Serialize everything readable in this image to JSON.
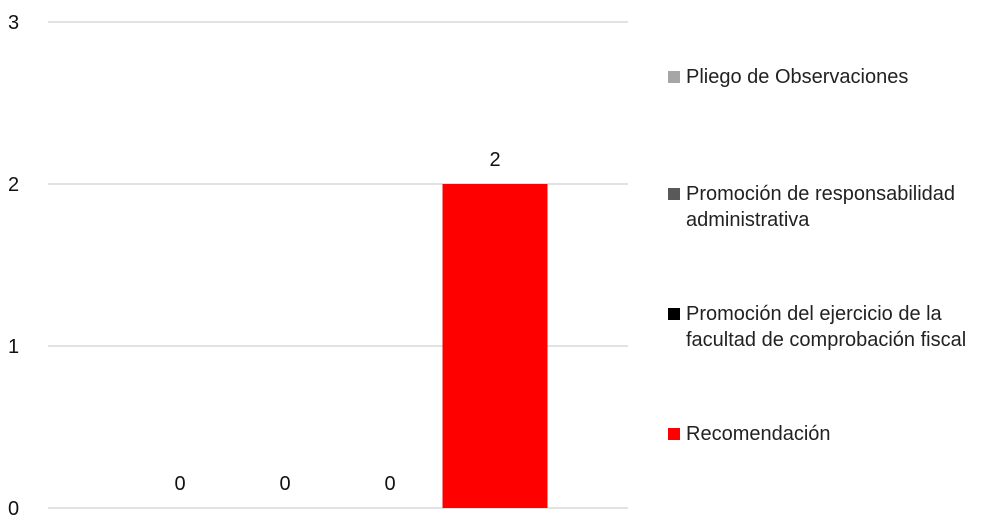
{
  "chart_data": {
    "type": "bar",
    "title": "",
    "xlabel": "",
    "ylabel": "",
    "ylim": [
      0,
      3
    ],
    "yticks": [
      0,
      1,
      2,
      3
    ],
    "grid": true,
    "legend_position": "right",
    "series": [
      {
        "name": "Pliego de Observaciones",
        "value": 0,
        "color": "#a6a6a6"
      },
      {
        "name": "Promoción de responsabilidad administrativa",
        "value": 0,
        "color": "#595959"
      },
      {
        "name": "Promoción del ejercicio de la facultad de comprobación fiscal",
        "value": 0,
        "color": "#000000"
      },
      {
        "name": "Recomendación",
        "value": 2,
        "color": "#ff0000"
      }
    ]
  }
}
